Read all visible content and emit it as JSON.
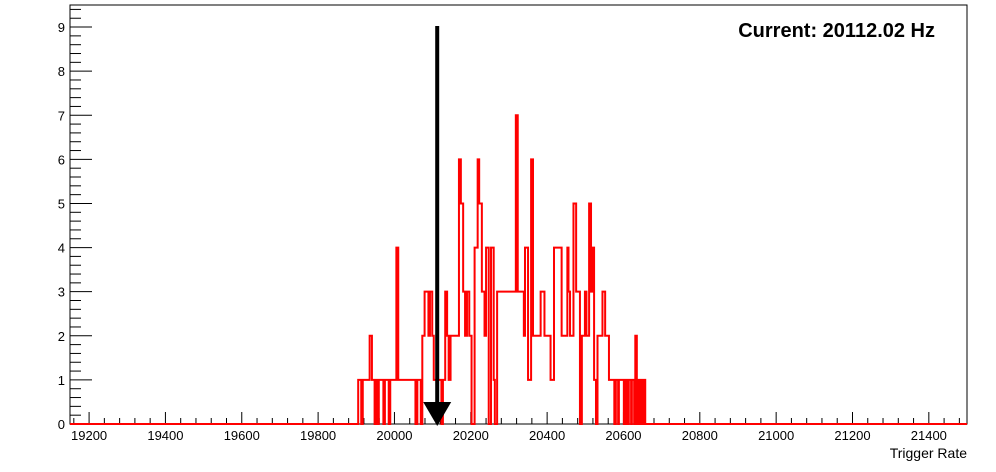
{
  "chart_data": {
    "type": "histogram",
    "title": "",
    "annotation": "Current: 20112.02 Hz",
    "xlabel": "Trigger Rate",
    "ylabel": "",
    "xlim": [
      19150,
      21500
    ],
    "ylim": [
      0,
      9.5
    ],
    "x_ticks": [
      19200,
      19400,
      19600,
      19800,
      20000,
      20200,
      20400,
      20600,
      20800,
      21000,
      21200,
      21400
    ],
    "y_ticks": [
      0,
      1,
      2,
      3,
      4,
      5,
      6,
      7,
      8,
      9
    ],
    "grid": false,
    "legend": "none",
    "line_color": "#ff0000",
    "marker_color": "#000000",
    "marker_value": 20112.02,
    "series": [
      {
        "values": [
          [
            19150,
            0
          ],
          [
            19905,
            1
          ],
          [
            19913,
            0
          ],
          [
            19917,
            1
          ],
          [
            19935,
            2
          ],
          [
            19941,
            1
          ],
          [
            19948,
            0
          ],
          [
            19951,
            1
          ],
          [
            19956,
            0
          ],
          [
            19959,
            1
          ],
          [
            19971,
            0
          ],
          [
            19975,
            1
          ],
          [
            19985,
            0
          ],
          [
            19989,
            1
          ],
          [
            20005,
            4
          ],
          [
            20010,
            1
          ],
          [
            20055,
            0
          ],
          [
            20060,
            1
          ],
          [
            20069,
            0
          ],
          [
            20073,
            2
          ],
          [
            20079,
            3
          ],
          [
            20089,
            2
          ],
          [
            20093,
            3
          ],
          [
            20099,
            2
          ],
          [
            20103,
            1
          ],
          [
            20123,
            0
          ],
          [
            20127,
            1
          ],
          [
            20133,
            3
          ],
          [
            20138,
            2
          ],
          [
            20142,
            1
          ],
          [
            20147,
            2
          ],
          [
            20169,
            6
          ],
          [
            20174,
            5
          ],
          [
            20180,
            3
          ],
          [
            20185,
            2
          ],
          [
            20190,
            3
          ],
          [
            20196,
            2
          ],
          [
            20202,
            0
          ],
          [
            20210,
            4
          ],
          [
            20218,
            6
          ],
          [
            20222,
            5
          ],
          [
            20229,
            3
          ],
          [
            20236,
            2
          ],
          [
            20240,
            4
          ],
          [
            20247,
            0
          ],
          [
            20253,
            4
          ],
          [
            20260,
            1
          ],
          [
            20263,
            0
          ],
          [
            20269,
            3
          ],
          [
            20284,
            3
          ],
          [
            20318,
            7
          ],
          [
            20323,
            3
          ],
          [
            20339,
            2
          ],
          [
            20342,
            4
          ],
          [
            20350,
            1
          ],
          [
            20358,
            6
          ],
          [
            20363,
            2
          ],
          [
            20383,
            3
          ],
          [
            20393,
            2
          ],
          [
            20409,
            1
          ],
          [
            20418,
            4
          ],
          [
            20430,
            4
          ],
          [
            20438,
            2
          ],
          [
            20453,
            4
          ],
          [
            20456,
            3
          ],
          [
            20460,
            2
          ],
          [
            20469,
            5
          ],
          [
            20476,
            3
          ],
          [
            20486,
            0
          ],
          [
            20491,
            2
          ],
          [
            20499,
            3
          ],
          [
            20503,
            2
          ],
          [
            20510,
            5
          ],
          [
            20515,
            3
          ],
          [
            20519,
            4
          ],
          [
            20523,
            1
          ],
          [
            20528,
            0
          ],
          [
            20532,
            2
          ],
          [
            20545,
            3
          ],
          [
            20552,
            2
          ],
          [
            20562,
            1
          ],
          [
            20576,
            0
          ],
          [
            20580,
            1
          ],
          [
            20586,
            0
          ],
          [
            20588,
            1
          ],
          [
            20601,
            0
          ],
          [
            20605,
            1
          ],
          [
            20610,
            0
          ],
          [
            20614,
            1
          ],
          [
            20620,
            0
          ],
          [
            20622,
            1
          ],
          [
            20628,
            0
          ],
          [
            20631,
            2
          ],
          [
            20635,
            0
          ],
          [
            20638,
            1
          ],
          [
            20642,
            0
          ],
          [
            20645,
            1
          ],
          [
            20650,
            0
          ],
          [
            20652,
            1
          ],
          [
            20657,
            0
          ],
          [
            20660,
            0
          ],
          [
            21500,
            0
          ]
        ]
      }
    ]
  }
}
